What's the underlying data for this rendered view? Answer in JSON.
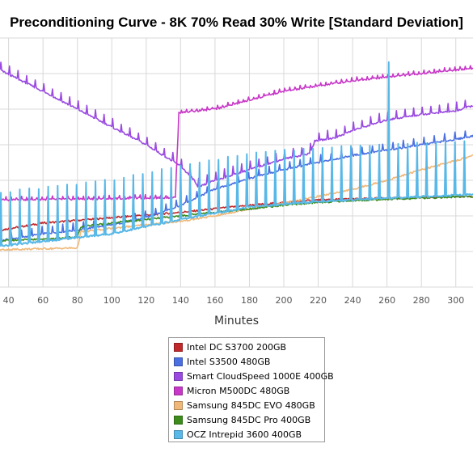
{
  "chart_data": {
    "type": "line",
    "title": "Preconditioning Curve - 8K 70% Read 30% Write [Standard Deviation]",
    "xlabel": "Minutes",
    "ylabel": "",
    "x_ticks": [
      40,
      60,
      80,
      100,
      120,
      140,
      160,
      180,
      200,
      220,
      240,
      260,
      280,
      300
    ],
    "xlim": [
      35,
      310
    ],
    "ylim": [
      0,
      7
    ],
    "grid": true,
    "legend_position": "bottom-center",
    "series": [
      {
        "name": "Intel DC S3700 200GB",
        "color": "#c0282a",
        "points": [
          [
            35,
            1.6
          ],
          [
            60,
            1.8
          ],
          [
            100,
            1.95
          ],
          [
            140,
            2.1
          ],
          [
            180,
            2.3
          ],
          [
            220,
            2.45
          ],
          [
            260,
            2.5
          ],
          [
            310,
            2.55
          ]
        ]
      },
      {
        "name": "Intel S3500 480GB",
        "color": "#4a6fe0",
        "points": [
          [
            35,
            1.3
          ],
          [
            60,
            1.5
          ],
          [
            80,
            1.6
          ],
          [
            100,
            1.75
          ],
          [
            120,
            1.95
          ],
          [
            140,
            2.3
          ],
          [
            160,
            2.75
          ],
          [
            180,
            3.05
          ],
          [
            200,
            3.3
          ],
          [
            220,
            3.5
          ],
          [
            240,
            3.7
          ],
          [
            260,
            3.85
          ],
          [
            280,
            4.0
          ],
          [
            300,
            4.15
          ],
          [
            310,
            4.25
          ]
        ],
        "spike_every": 6,
        "spike_height": 0.25
      },
      {
        "name": "Smart CloudSpeed 1000E 400GB",
        "color": "#9a4ae0",
        "points": [
          [
            35,
            6.1
          ],
          [
            60,
            5.5
          ],
          [
            80,
            5.0
          ],
          [
            100,
            4.5
          ],
          [
            120,
            4.0
          ],
          [
            140,
            3.4
          ],
          [
            148,
            3.0
          ],
          [
            150,
            2.8
          ],
          [
            160,
            3.0
          ],
          [
            180,
            3.3
          ],
          [
            200,
            3.6
          ],
          [
            215,
            3.75
          ],
          [
            218,
            4.1
          ],
          [
            230,
            4.2
          ],
          [
            240,
            4.4
          ],
          [
            260,
            4.7
          ],
          [
            280,
            4.85
          ],
          [
            300,
            4.95
          ],
          [
            310,
            5.1
          ]
        ],
        "spike_every": 5,
        "spike_height": 0.3
      },
      {
        "name": "Micron M500DC 480GB",
        "color": "#c838c8",
        "points": [
          [
            35,
            2.45
          ],
          [
            80,
            2.47
          ],
          [
            120,
            2.5
          ],
          [
            137,
            2.52
          ],
          [
            139,
            4.9
          ],
          [
            160,
            5.0
          ],
          [
            180,
            5.25
          ],
          [
            200,
            5.5
          ],
          [
            220,
            5.65
          ],
          [
            240,
            5.8
          ],
          [
            260,
            5.9
          ],
          [
            280,
            6.0
          ],
          [
            300,
            6.1
          ],
          [
            310,
            6.15
          ]
        ],
        "spike_every": 3,
        "spike_height": 0.1
      },
      {
        "name": "Samsung 845DC EVO 480GB",
        "color": "#f0b878",
        "points": [
          [
            35,
            1.05
          ],
          [
            80,
            1.1
          ],
          [
            82,
            1.55
          ],
          [
            100,
            1.65
          ],
          [
            120,
            1.75
          ],
          [
            140,
            1.85
          ],
          [
            160,
            2.0
          ],
          [
            180,
            2.2
          ],
          [
            200,
            2.35
          ],
          [
            220,
            2.55
          ],
          [
            240,
            2.75
          ],
          [
            260,
            3.0
          ],
          [
            280,
            3.3
          ],
          [
            300,
            3.55
          ],
          [
            310,
            3.7
          ]
        ]
      },
      {
        "name": "Samsung 845DC Pro 400GB",
        "color": "#3c8c1c",
        "points": [
          [
            35,
            1.3
          ],
          [
            80,
            1.4
          ],
          [
            82,
            1.7
          ],
          [
            100,
            1.8
          ],
          [
            120,
            1.9
          ],
          [
            140,
            2.0
          ],
          [
            160,
            2.1
          ],
          [
            180,
            2.2
          ],
          [
            200,
            2.3
          ],
          [
            220,
            2.38
          ],
          [
            240,
            2.43
          ],
          [
            260,
            2.47
          ],
          [
            280,
            2.5
          ],
          [
            310,
            2.55
          ]
        ]
      },
      {
        "name": "OCZ Intrepid 3600 400GB",
        "color": "#58b8e8",
        "points": [
          [
            35,
            1.15
          ],
          [
            100,
            1.5
          ],
          [
            140,
            1.9
          ],
          [
            180,
            2.25
          ],
          [
            220,
            2.4
          ],
          [
            260,
            2.5
          ],
          [
            310,
            2.6
          ]
        ],
        "spike_every": 5.5,
        "spike_height": 1.7,
        "spike_top": 6.8,
        "spike_peak_at": 261
      }
    ]
  }
}
